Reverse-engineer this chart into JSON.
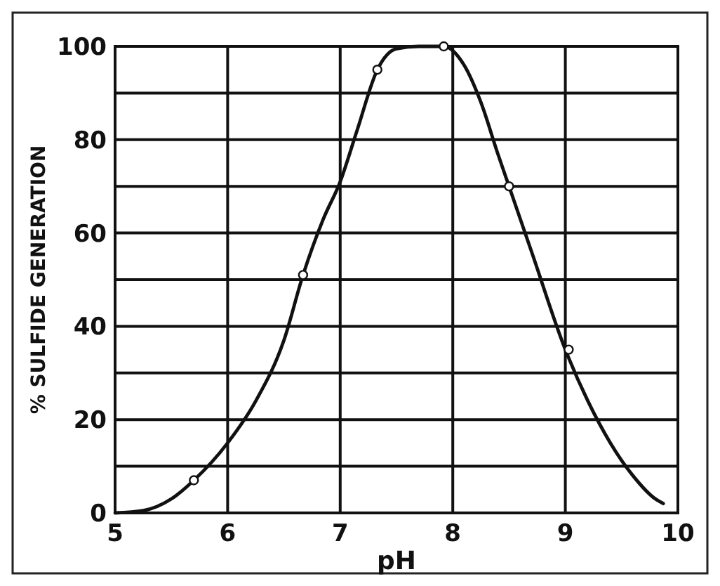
{
  "chart_data": {
    "type": "line",
    "xlabel": "pH",
    "ylabel": "% SULFIDE GENERATION",
    "xlim": [
      5,
      10
    ],
    "xticks": [
      5,
      6,
      7,
      8,
      9,
      10
    ],
    "ylim": [
      0,
      100
    ],
    "yticks": [
      0,
      {
        "value": 10,
        "label": null
      },
      20,
      {
        "value": 30,
        "label": null
      },
      40,
      {
        "value": 50,
        "label": null
      },
      60,
      {
        "value": 70,
        "label": null
      },
      80,
      {
        "value": 90,
        "label": null
      },
      100
    ],
    "grid": true,
    "series": [
      {
        "color": "#111111",
        "marker": "none",
        "x": [
          5,
          5.25,
          5.5,
          5.7,
          6,
          6.25,
          6.5,
          6.67,
          6.85,
          7,
          7.15,
          7.33,
          7.5,
          7.7,
          7.92,
          8.1,
          8.25,
          8.4,
          8.5,
          8.7,
          9,
          9.2,
          9.4,
          9.6,
          9.8,
          9.87
        ],
        "values": [
          0,
          0.5,
          3,
          7,
          15,
          24,
          37,
          51,
          63,
          71,
          82,
          95,
          99.5,
          100,
          100,
          96,
          88,
          77,
          70,
          56,
          35,
          24,
          15,
          8,
          3,
          2
        ]
      },
      {
        "type": "scatter",
        "color": "#111111",
        "marker": "circle",
        "x": [
          5.7,
          6.67,
          7.33,
          7.92,
          8.5,
          9.03
        ],
        "values": [
          7,
          51,
          95,
          100,
          70,
          35
        ]
      }
    ]
  }
}
